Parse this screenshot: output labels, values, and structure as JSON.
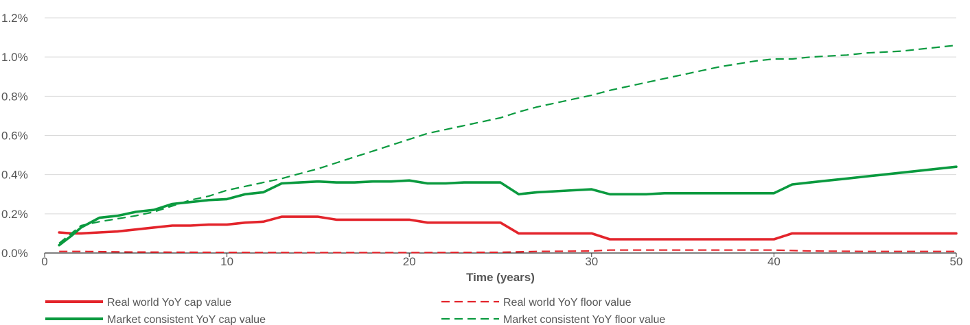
{
  "chart_data": {
    "type": "line",
    "title": "",
    "xlabel": "Time (years)",
    "ylabel": "",
    "xlim": [
      0,
      50
    ],
    "ylim": [
      0,
      1.2
    ],
    "x_ticks": [
      0,
      10,
      20,
      30,
      40,
      50
    ],
    "y_ticks": [
      0,
      0.2,
      0.4,
      0.6,
      0.8,
      1.0,
      1.2
    ],
    "y_tick_labels": [
      "0.0%",
      "0.2%",
      "0.4%",
      "0.6%",
      "0.8%",
      "1.0%",
      "1.2%"
    ],
    "grid": true,
    "legend_position": "bottom",
    "colors": {
      "red": "#e3242b",
      "green": "#0a9a3f"
    },
    "series": [
      {
        "name": "Real world YoY cap value",
        "color": "#e3242b",
        "style": "solid",
        "x": [
          0.8,
          1.5,
          2,
          3,
          4,
          5,
          6,
          7,
          8,
          9,
          10,
          11,
          12,
          13,
          14,
          15,
          16,
          17,
          18,
          19,
          20,
          21,
          22,
          23,
          24,
          25,
          26,
          27,
          28,
          29,
          30,
          31,
          32,
          33,
          34,
          35,
          36,
          37,
          38,
          39,
          40,
          41,
          42,
          43,
          44,
          45,
          46,
          47,
          48,
          49,
          50
        ],
        "y": [
          0.105,
          0.1,
          0.1,
          0.105,
          0.11,
          0.12,
          0.13,
          0.14,
          0.14,
          0.145,
          0.145,
          0.155,
          0.16,
          0.185,
          0.185,
          0.185,
          0.17,
          0.17,
          0.17,
          0.17,
          0.17,
          0.155,
          0.155,
          0.155,
          0.155,
          0.155,
          0.1,
          0.1,
          0.1,
          0.1,
          0.1,
          0.07,
          0.07,
          0.07,
          0.07,
          0.07,
          0.07,
          0.07,
          0.07,
          0.07,
          0.07,
          0.1,
          0.1,
          0.1,
          0.1,
          0.1,
          0.1,
          0.1,
          0.1,
          0.1,
          0.1
        ]
      },
      {
        "name": "Real world YoY floor value",
        "color": "#e3242b",
        "style": "dashed",
        "x": [
          0.8,
          2,
          5,
          10,
          15,
          20,
          25,
          27,
          30,
          31,
          35,
          40,
          42,
          45,
          50
        ],
        "y": [
          0.008,
          0.008,
          0.005,
          0.003,
          0.002,
          0.002,
          0.004,
          0.008,
          0.01,
          0.015,
          0.015,
          0.015,
          0.01,
          0.008,
          0.008
        ]
      },
      {
        "name": "Market consistent YoY cap value",
        "color": "#0a9a3f",
        "style": "solid",
        "x": [
          0.8,
          1.5,
          2,
          3,
          4,
          5,
          6,
          7,
          8,
          9,
          10,
          11,
          12,
          13,
          14,
          15,
          16,
          17,
          18,
          19,
          20,
          21,
          22,
          23,
          24,
          25,
          26,
          27,
          28,
          29,
          30,
          31,
          32,
          33,
          34,
          35,
          36,
          37,
          38,
          39,
          40,
          41,
          42,
          43,
          44,
          45,
          46,
          47,
          48,
          49,
          50
        ],
        "y": [
          0.04,
          0.09,
          0.13,
          0.18,
          0.19,
          0.21,
          0.22,
          0.25,
          0.26,
          0.27,
          0.275,
          0.3,
          0.31,
          0.355,
          0.36,
          0.365,
          0.36,
          0.36,
          0.365,
          0.365,
          0.37,
          0.355,
          0.355,
          0.36,
          0.36,
          0.36,
          0.3,
          0.31,
          0.315,
          0.32,
          0.325,
          0.3,
          0.3,
          0.3,
          0.305,
          0.305,
          0.305,
          0.305,
          0.305,
          0.305,
          0.305,
          0.35,
          0.36,
          0.37,
          0.38,
          0.39,
          0.4,
          0.41,
          0.42,
          0.43,
          0.44
        ]
      },
      {
        "name": "Market consistent YoY floor value",
        "color": "#0a9a3f",
        "style": "dashed",
        "x": [
          0.8,
          2,
          3,
          4,
          5,
          6,
          7,
          8,
          9,
          10,
          11,
          12,
          13,
          14,
          15,
          16,
          17,
          18,
          19,
          20,
          21,
          22,
          23,
          24,
          25,
          26,
          27,
          28,
          29,
          30,
          31,
          32,
          33,
          34,
          35,
          36,
          37,
          38,
          39,
          40,
          41,
          42,
          43,
          44,
          45,
          46,
          47,
          48,
          49,
          50
        ],
        "y": [
          0.05,
          0.14,
          0.16,
          0.175,
          0.19,
          0.21,
          0.24,
          0.27,
          0.29,
          0.32,
          0.34,
          0.36,
          0.38,
          0.405,
          0.43,
          0.46,
          0.49,
          0.52,
          0.55,
          0.58,
          0.61,
          0.63,
          0.65,
          0.67,
          0.69,
          0.72,
          0.745,
          0.765,
          0.785,
          0.805,
          0.83,
          0.85,
          0.87,
          0.89,
          0.91,
          0.93,
          0.95,
          0.965,
          0.98,
          0.99,
          0.99,
          1.0,
          1.005,
          1.01,
          1.02,
          1.025,
          1.03,
          1.04,
          1.05,
          1.06
        ]
      }
    ]
  }
}
